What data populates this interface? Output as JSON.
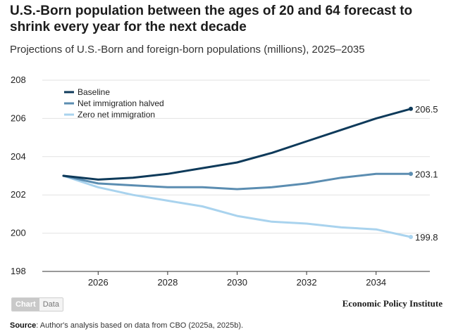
{
  "header": {
    "title": "U.S.-Born population between the ages of 20 and 64 forecast to shrink every year for the next decade",
    "subtitle": "Projections of U.S.-Born and foreign-born populations (millions), 2025–2035"
  },
  "chart_data": {
    "type": "line",
    "title": "U.S.-Born population between the ages of 20 and 64 forecast to shrink every year for the next decade",
    "subtitle": "Projections of U.S.-Born and foreign-born populations (millions), 2025–2035",
    "xlabel": "",
    "ylabel": "",
    "x": [
      2025,
      2026,
      2027,
      2028,
      2029,
      2030,
      2031,
      2032,
      2033,
      2034,
      2035
    ],
    "xlim": [
      2025,
      2035
    ],
    "ylim": [
      198,
      208
    ],
    "xticks": [
      "2026",
      "2028",
      "2030",
      "2032",
      "2034"
    ],
    "yticks": [
      "198",
      "200",
      "202",
      "204",
      "206",
      "208"
    ],
    "grid": "horizontal",
    "legend_position": "top-left",
    "series": [
      {
        "name": "Baseline",
        "color": "#0e3a5a",
        "values": [
          203.0,
          202.8,
          202.9,
          203.1,
          203.4,
          203.7,
          204.2,
          204.8,
          205.4,
          206.0,
          206.5
        ],
        "end_label": "206.5"
      },
      {
        "name": "Net immigration halved",
        "color": "#5b8db1",
        "values": [
          203.0,
          202.6,
          202.5,
          202.4,
          202.4,
          202.3,
          202.4,
          202.6,
          202.9,
          203.1,
          203.1
        ],
        "end_label": "203.1"
      },
      {
        "name": "Zero net immigration",
        "color": "#a9d3ee",
        "values": [
          203.0,
          202.4,
          202.0,
          201.7,
          201.4,
          200.9,
          200.6,
          200.5,
          200.3,
          200.2,
          199.8
        ],
        "end_label": "199.8"
      }
    ]
  },
  "footer": {
    "toggle_chart": "Chart",
    "toggle_data": "Data",
    "brand": "Economic Policy Institute",
    "source_label": "Source",
    "source_text": ": Author's analysis based on data from CBO (2025a, 2025b)."
  }
}
